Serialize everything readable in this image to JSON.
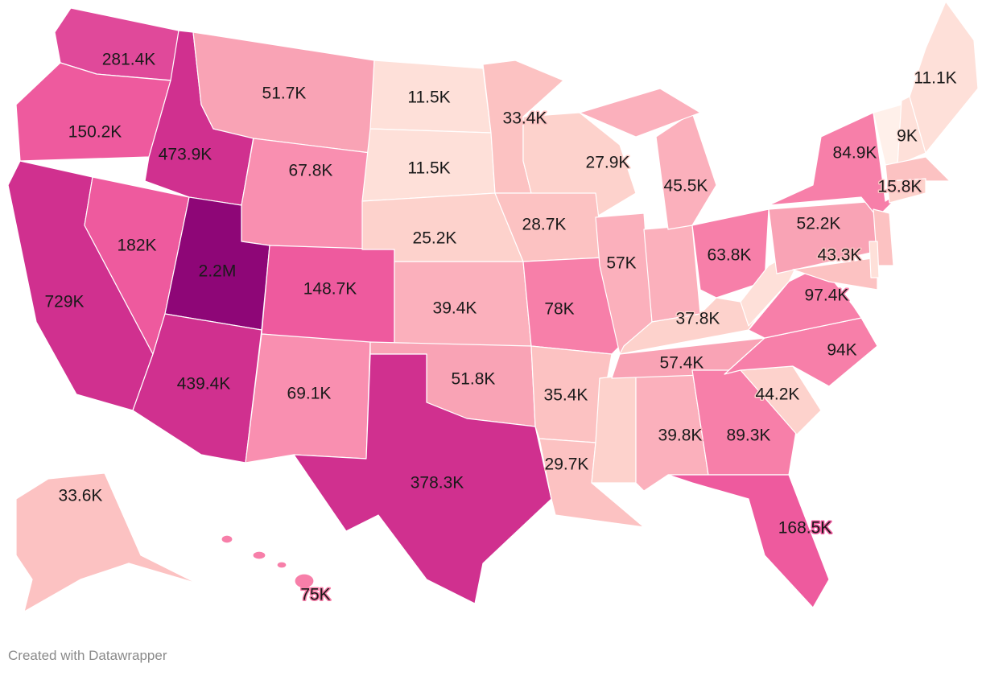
{
  "footer": {
    "credit": "Created with Datawrapper"
  },
  "colors": {
    "c1": "#8e0677",
    "c2": "#d0308f",
    "c3": "#e0499a",
    "c4": "#ee5a9e",
    "c5": "#f77fa9",
    "c6": "#f98fb0",
    "c7": "#f9a3b5",
    "c8": "#fbb0bc",
    "c9": "#fcc2c2",
    "c10": "#fdd2cc",
    "c11": "#fee0d9",
    "c12": "#fff0ea"
  },
  "states": [
    {
      "id": "WA",
      "label": "281.4K",
      "color": "c3"
    },
    {
      "id": "OR",
      "label": "150.2K",
      "color": "c4"
    },
    {
      "id": "CA",
      "label": "729K",
      "color": "c2"
    },
    {
      "id": "NV",
      "label": "182K",
      "color": "c4"
    },
    {
      "id": "ID",
      "label": "473.9K",
      "color": "c2"
    },
    {
      "id": "MT",
      "label": "51.7K",
      "color": "c7"
    },
    {
      "id": "WY",
      "label": "67.8K",
      "color": "c6"
    },
    {
      "id": "UT",
      "label": "2.2M",
      "color": "c1"
    },
    {
      "id": "AZ",
      "label": "439.4K",
      "color": "c2"
    },
    {
      "id": "CO",
      "label": "148.7K",
      "color": "c4"
    },
    {
      "id": "NM",
      "label": "69.1K",
      "color": "c6"
    },
    {
      "id": "ND",
      "label": "11.5K",
      "color": "c11"
    },
    {
      "id": "SD",
      "label": "11.5K",
      "color": "c11"
    },
    {
      "id": "NE",
      "label": "25.2K",
      "color": "c10"
    },
    {
      "id": "KS",
      "label": "39.4K",
      "color": "c8"
    },
    {
      "id": "OK",
      "label": "51.8K",
      "color": "c7"
    },
    {
      "id": "TX",
      "label": "378.3K",
      "color": "c2"
    },
    {
      "id": "MN",
      "label": "33.4K",
      "color": "c9"
    },
    {
      "id": "WI",
      "label": "27.9K",
      "color": "c10"
    },
    {
      "id": "IA",
      "label": "28.7K",
      "color": "c9"
    },
    {
      "id": "MO",
      "label": "78K",
      "color": "c5"
    },
    {
      "id": "AR",
      "label": "35.4K",
      "color": "c9"
    },
    {
      "id": "LA",
      "label": "29.7K",
      "color": "c9"
    },
    {
      "id": "MS",
      "label": "",
      "color": "c10"
    },
    {
      "id": "AL",
      "label": "39.8K",
      "color": "c8"
    },
    {
      "id": "IL",
      "label": "57K",
      "color": "c8"
    },
    {
      "id": "IN",
      "label": "",
      "color": "c8"
    },
    {
      "id": "MI",
      "label": "45.5K",
      "color": "c8"
    },
    {
      "id": "OH",
      "label": "63.8K",
      "color": "c5"
    },
    {
      "id": "KY",
      "label": "37.8K",
      "color": "c10"
    },
    {
      "id": "TN",
      "label": "57.4K",
      "color": "c7"
    },
    {
      "id": "GA",
      "label": "89.3K",
      "color": "c5"
    },
    {
      "id": "FL",
      "label": "168.5K",
      "color": "c4"
    },
    {
      "id": "SC",
      "label": "44.2K",
      "color": "c10"
    },
    {
      "id": "NC",
      "label": "94K",
      "color": "c5"
    },
    {
      "id": "VA",
      "label": "97.4K",
      "color": "c5"
    },
    {
      "id": "WV",
      "label": "",
      "color": "c11"
    },
    {
      "id": "PA",
      "label": "52.2K",
      "color": "c7"
    },
    {
      "id": "NY",
      "label": "84.9K",
      "color": "c5"
    },
    {
      "id": "NJ",
      "label": "",
      "color": "c9"
    },
    {
      "id": "MD",
      "label": "43.3K",
      "color": "c9"
    },
    {
      "id": "DE",
      "label": "",
      "color": "c11"
    },
    {
      "id": "VT",
      "label": "",
      "color": "c12"
    },
    {
      "id": "NH",
      "label": "9K",
      "color": "c11"
    },
    {
      "id": "ME",
      "label": "11.1K",
      "color": "c11"
    },
    {
      "id": "MA",
      "label": "15.8K",
      "color": "c9"
    },
    {
      "id": "CT",
      "label": "",
      "color": "c10"
    },
    {
      "id": "AK",
      "label": "33.6K",
      "color": "c9"
    },
    {
      "id": "HI",
      "label": "75K",
      "color": "c5"
    }
  ]
}
